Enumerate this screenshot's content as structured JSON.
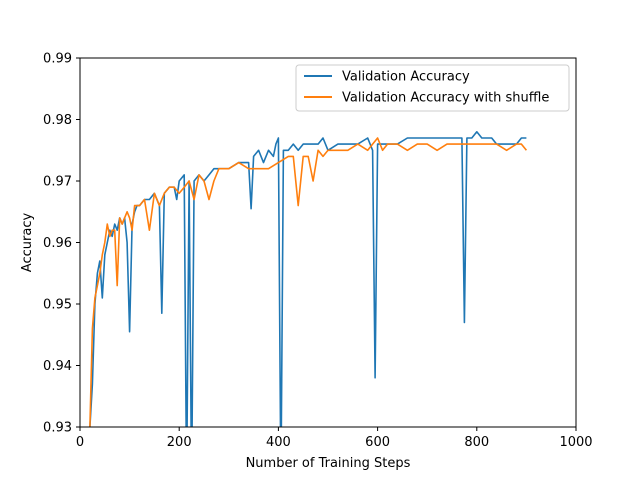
{
  "chart_data": {
    "type": "line",
    "title": "",
    "xlabel": "Number of Training Steps",
    "ylabel": "Accuracy",
    "xlim": [
      0,
      1000
    ],
    "ylim": [
      0.93,
      0.99
    ],
    "xticks": [
      0,
      200,
      400,
      600,
      800,
      1000
    ],
    "xtick_labels": [
      "0",
      "200",
      "400",
      "600",
      "800",
      "1000"
    ],
    "yticks": [
      0.93,
      0.94,
      0.95,
      0.96,
      0.97,
      0.98,
      0.99
    ],
    "ytick_labels": [
      "0.93",
      "0.94",
      "0.95",
      "0.96",
      "0.97",
      "0.98",
      "0.99"
    ],
    "grid": false,
    "legend_position": "top-right",
    "series": [
      {
        "name": "Validation Accuracy",
        "color": "#1f77b4",
        "x": [
          20,
          25,
          30,
          35,
          40,
          45,
          50,
          55,
          60,
          65,
          70,
          75,
          80,
          85,
          90,
          95,
          100,
          105,
          110,
          115,
          120,
          130,
          140,
          150,
          160,
          165,
          170,
          180,
          190,
          195,
          200,
          210,
          215,
          220,
          225,
          230,
          240,
          250,
          260,
          270,
          280,
          290,
          300,
          320,
          340,
          345,
          350,
          360,
          370,
          380,
          390,
          395,
          400,
          405,
          410,
          415,
          420,
          430,
          440,
          450,
          460,
          470,
          480,
          490,
          500,
          520,
          540,
          560,
          580,
          590,
          595,
          600,
          610,
          620,
          640,
          660,
          680,
          700,
          720,
          740,
          760,
          770,
          775,
          780,
          790,
          800,
          810,
          820,
          830,
          840,
          850,
          860,
          870,
          880,
          890,
          900
        ],
        "y": [
          0.93,
          0.937,
          0.95,
          0.955,
          0.957,
          0.951,
          0.958,
          0.96,
          0.962,
          0.961,
          0.963,
          0.962,
          0.964,
          0.963,
          0.964,
          0.96,
          0.9455,
          0.963,
          0.965,
          0.966,
          0.966,
          0.967,
          0.967,
          0.968,
          0.966,
          0.9485,
          0.968,
          0.969,
          0.969,
          0.967,
          0.97,
          0.971,
          0.92,
          0.97,
          0.92,
          0.97,
          0.971,
          0.97,
          0.971,
          0.972,
          0.972,
          0.972,
          0.972,
          0.973,
          0.973,
          0.9655,
          0.974,
          0.975,
          0.973,
          0.975,
          0.974,
          0.976,
          0.977,
          0.92,
          0.975,
          0.975,
          0.975,
          0.976,
          0.975,
          0.976,
          0.976,
          0.976,
          0.976,
          0.977,
          0.975,
          0.976,
          0.976,
          0.976,
          0.977,
          0.975,
          0.938,
          0.976,
          0.976,
          0.976,
          0.976,
          0.977,
          0.977,
          0.977,
          0.977,
          0.977,
          0.977,
          0.977,
          0.947,
          0.977,
          0.977,
          0.978,
          0.977,
          0.977,
          0.977,
          0.976,
          0.976,
          0.976,
          0.976,
          0.976,
          0.977,
          0.977
        ]
      },
      {
        "name": "Validation Accuracy with shuffle",
        "color": "#ff7f0e",
        "x": [
          20,
          25,
          30,
          35,
          40,
          45,
          50,
          55,
          60,
          65,
          70,
          75,
          80,
          85,
          90,
          95,
          100,
          105,
          110,
          115,
          120,
          130,
          140,
          150,
          160,
          170,
          180,
          190,
          200,
          210,
          220,
          230,
          240,
          250,
          260,
          270,
          280,
          290,
          300,
          320,
          340,
          360,
          380,
          400,
          420,
          430,
          440,
          450,
          460,
          470,
          480,
          490,
          500,
          520,
          540,
          560,
          580,
          590,
          600,
          610,
          620,
          640,
          660,
          680,
          700,
          720,
          740,
          760,
          780,
          800,
          820,
          840,
          860,
          880,
          890,
          900
        ],
        "y": [
          0.93,
          0.946,
          0.951,
          0.953,
          0.955,
          0.958,
          0.96,
          0.963,
          0.961,
          0.962,
          0.962,
          0.953,
          0.964,
          0.963,
          0.964,
          0.965,
          0.964,
          0.962,
          0.966,
          0.966,
          0.966,
          0.967,
          0.962,
          0.968,
          0.966,
          0.968,
          0.969,
          0.969,
          0.968,
          0.969,
          0.97,
          0.967,
          0.971,
          0.97,
          0.967,
          0.97,
          0.972,
          0.972,
          0.972,
          0.973,
          0.972,
          0.972,
          0.972,
          0.973,
          0.974,
          0.974,
          0.966,
          0.974,
          0.974,
          0.97,
          0.975,
          0.974,
          0.975,
          0.975,
          0.975,
          0.976,
          0.975,
          0.976,
          0.977,
          0.975,
          0.976,
          0.976,
          0.975,
          0.976,
          0.976,
          0.975,
          0.976,
          0.976,
          0.976,
          0.976,
          0.976,
          0.976,
          0.975,
          0.976,
          0.976,
          0.975
        ]
      }
    ]
  }
}
